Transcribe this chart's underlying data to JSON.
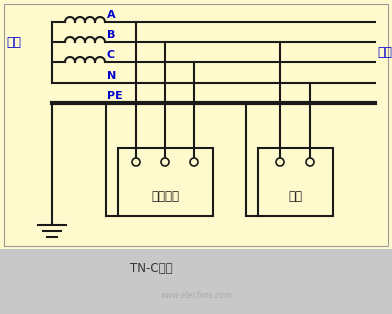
{
  "bg_color": "#fffacd",
  "bottom_bg": "#c8c8c8",
  "line_color": "#1a1a1a",
  "blue_color": "#0000cc",
  "elec_label": "电源",
  "load_label": "负荷",
  "device3_label": "三相设备",
  "device1_label": "单相",
  "caption": "TN-C系统",
  "watermark": "www.elecfans.com"
}
